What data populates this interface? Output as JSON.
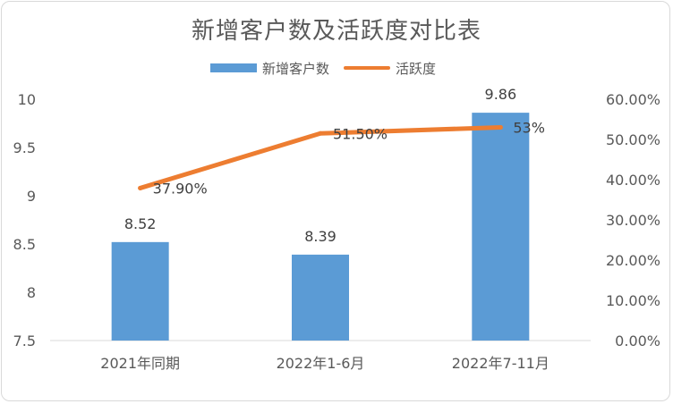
{
  "chart_data": {
    "type": "bar",
    "title": "新增客户数及活跃度对比表",
    "categories": [
      "2021年同期",
      "2022年1-6月",
      "2022年7-11月"
    ],
    "series": [
      {
        "name": "新增客户数",
        "type": "bar",
        "axis": "left",
        "values": [
          8.52,
          8.39,
          9.86
        ],
        "labels": [
          "8.52",
          "8.39",
          "9.86"
        ],
        "color": "#5b9bd5"
      },
      {
        "name": "活跃度",
        "type": "line",
        "axis": "right",
        "values": [
          0.379,
          0.515,
          0.53
        ],
        "labels": [
          "37.90%",
          "51.50%",
          "53%"
        ],
        "color": "#ed7d31"
      }
    ],
    "y_left": {
      "min": 7.5,
      "max": 10,
      "ticks": [
        "7.5",
        "8",
        "8.5",
        "9",
        "9.5",
        "10"
      ]
    },
    "y_right": {
      "min": 0,
      "max": 0.6,
      "ticks": [
        "0.00%",
        "10.00%",
        "20.00%",
        "30.00%",
        "40.00%",
        "50.00%",
        "60.00%"
      ]
    },
    "grid": false,
    "legend": "top"
  }
}
